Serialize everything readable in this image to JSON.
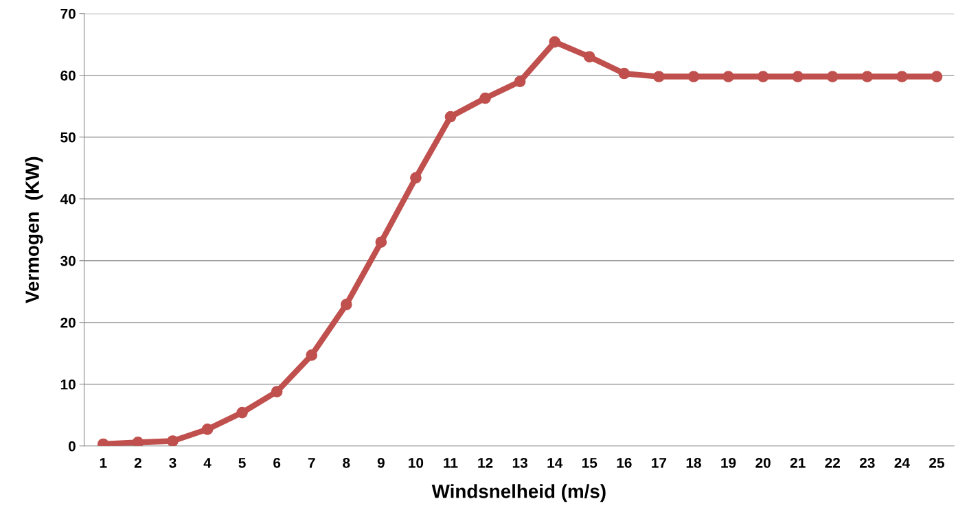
{
  "chart_data": {
    "type": "line",
    "xlabel": "Windsnelheid (m/s)",
    "ylabel": "Vermogen  (KW)",
    "categories": [
      "1",
      "2",
      "3",
      "4",
      "5",
      "6",
      "7",
      "8",
      "9",
      "10",
      "11",
      "12",
      "13",
      "14",
      "15",
      "16",
      "17",
      "18",
      "19",
      "20",
      "21",
      "22",
      "23",
      "24",
      "25"
    ],
    "series": [
      {
        "color": "#c0504d",
        "values": [
          0.3,
          0.6,
          0.8,
          2.7,
          5.4,
          8.8,
          14.7,
          22.9,
          33,
          43.4,
          53.3,
          56.3,
          59,
          65.4,
          63,
          60.3,
          59.8,
          59.8,
          59.8,
          59.8,
          59.8,
          59.8,
          59.8,
          59.8,
          59.8
        ]
      }
    ],
    "ylim": [
      0,
      70
    ],
    "yticks": [
      0,
      10,
      20,
      30,
      40,
      50,
      60,
      70
    ],
    "grid": "y",
    "marker": "circle",
    "line_style": "solid"
  }
}
